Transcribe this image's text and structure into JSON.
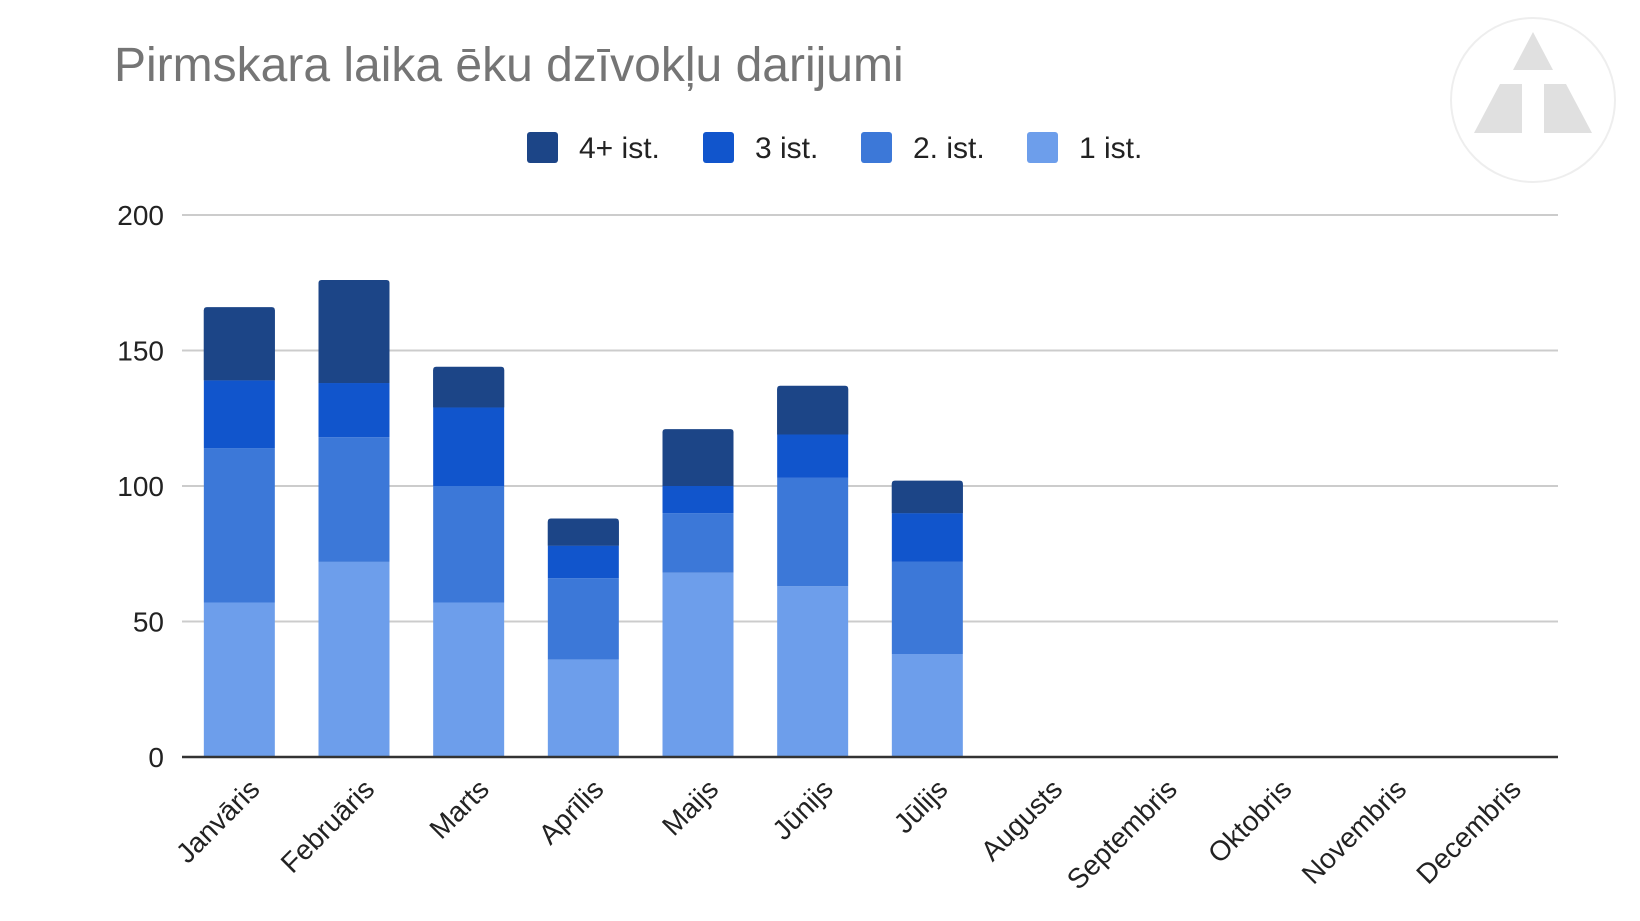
{
  "chart_data": {
    "type": "bar",
    "stacked": true,
    "title": "Pirmskara laika ēku dzīvokļu darijumi",
    "xlabel": "",
    "ylabel": "",
    "ylim": [
      0,
      200
    ],
    "yticks": [
      0,
      50,
      100,
      150,
      200
    ],
    "grid": true,
    "legend_position": "top",
    "categories": [
      "Janvāris",
      "Februāris",
      "Marts",
      "Aprīlis",
      "Maijs",
      "Jūnijs",
      "Jūlijs",
      "Augusts",
      "Septembris",
      "Oktobris",
      "Novembris",
      "Decembris"
    ],
    "series": [
      {
        "name": "1 ist.",
        "color": "#6d9eeb",
        "values": [
          57,
          72,
          57,
          36,
          68,
          63,
          38,
          0,
          0,
          0,
          0,
          0
        ]
      },
      {
        "name": "2. ist.",
        "color": "#3c78d8",
        "values": [
          57,
          46,
          43,
          30,
          22,
          40,
          34,
          0,
          0,
          0,
          0,
          0
        ]
      },
      {
        "name": "3 ist.",
        "color": "#1155cc",
        "values": [
          25,
          20,
          29,
          12,
          10,
          16,
          18,
          0,
          0,
          0,
          0,
          0
        ]
      },
      {
        "name": "4+ ist.",
        "color": "#1c4587",
        "values": [
          27,
          38,
          15,
          10,
          21,
          18,
          12,
          0,
          0,
          0,
          0,
          0
        ]
      }
    ],
    "legend_order": [
      "4+ ist.",
      "3 ist.",
      "2. ist.",
      "1 ist."
    ]
  }
}
